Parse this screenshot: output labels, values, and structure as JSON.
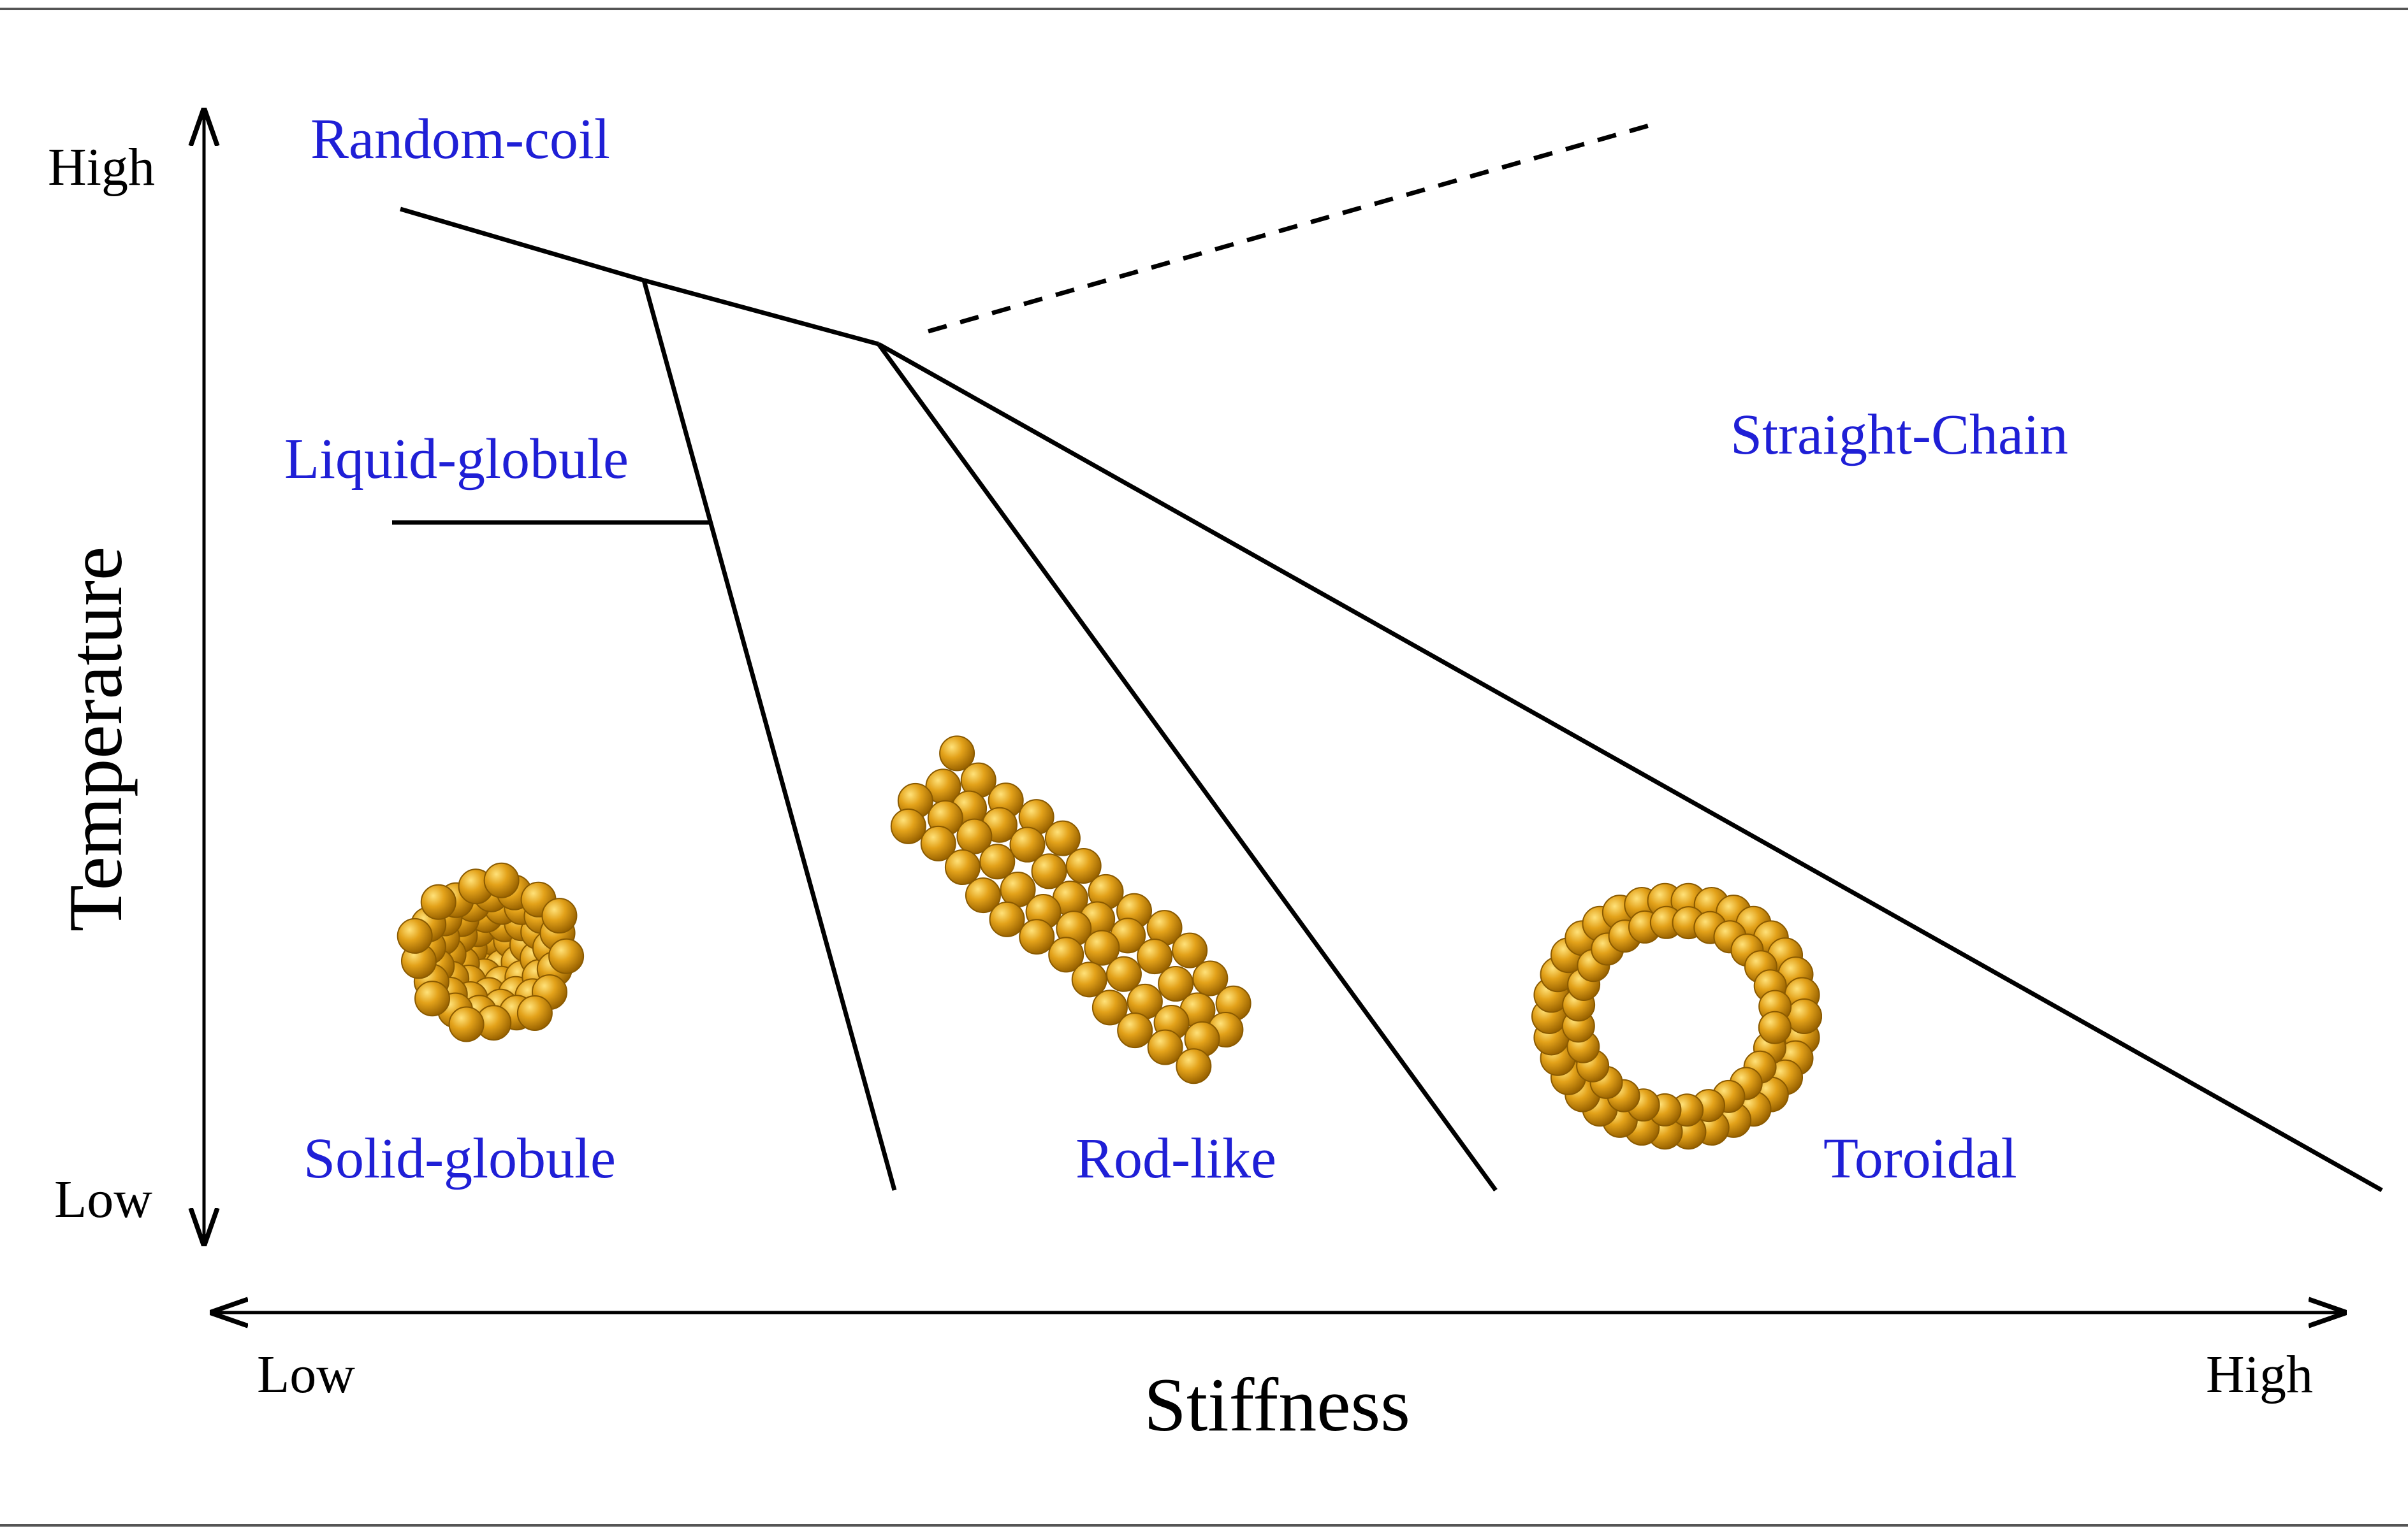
{
  "axes": {
    "y_title": "Temperature",
    "y_high": "High",
    "y_low": "Low",
    "x_title": "Stiffness",
    "x_low": "Low",
    "x_high": "High"
  },
  "phases": {
    "random_coil": "Random-coil",
    "liquid_globule": "Liquid-globule",
    "straight_chain": "Straight-Chain",
    "solid_globule": "Solid-globule",
    "rod_like": "Rod-like",
    "toroidal": "Toroidal"
  },
  "colors": {
    "phase_label": "#1f1fd6",
    "bead": "#e3a21a",
    "bead_edge": "#8a5a00",
    "bond": "#333333",
    "line": "#000000"
  }
}
